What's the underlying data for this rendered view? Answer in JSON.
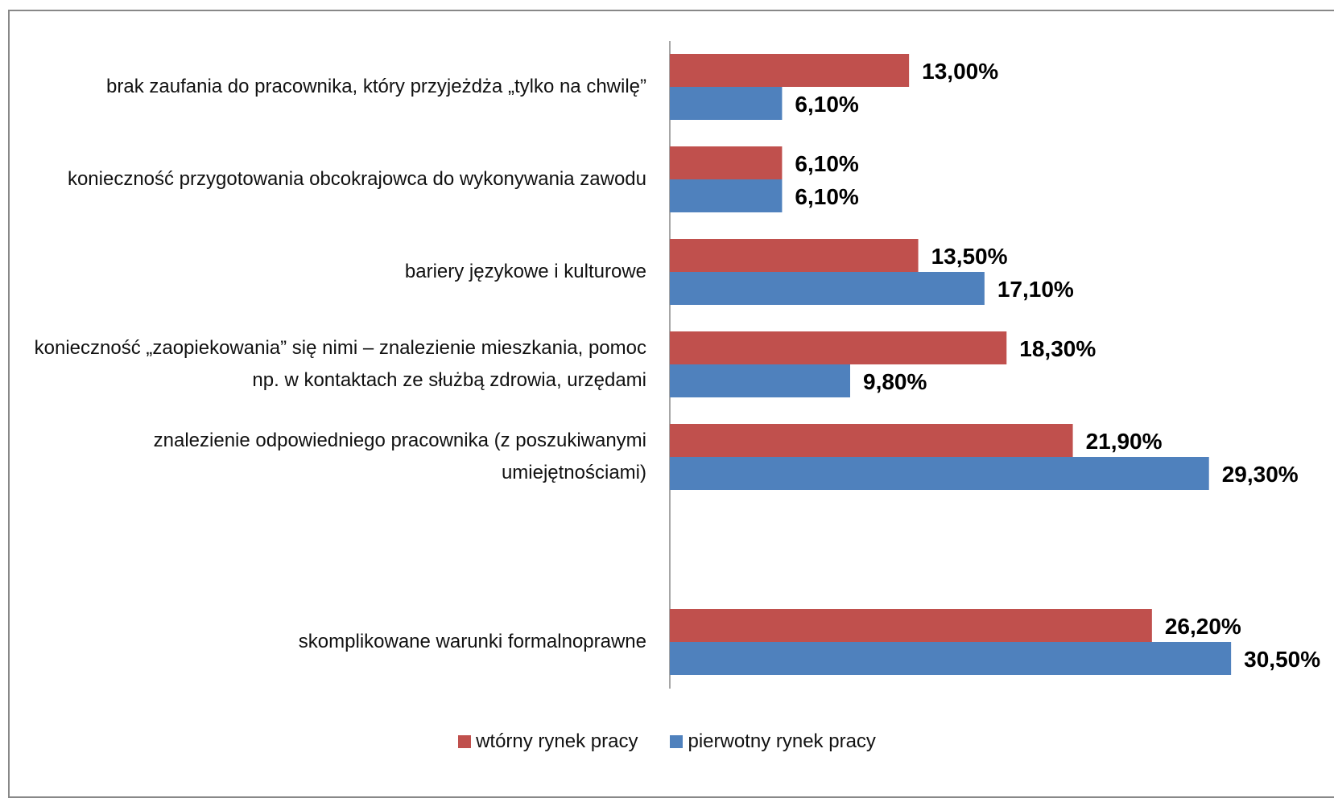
{
  "chart_data": {
    "type": "bar",
    "orientation": "horizontal",
    "categories": [
      "brak zaufania do pracownika, który przyjeżdża „tylko na chwilę”",
      "konieczność przygotowania obcokrajowca do wykonywania zawodu",
      "bariery językowe i kulturowe",
      "konieczność „zaopiekowania” się nimi – znalezienie mieszkania, pomoc np. w kontaktach ze służbą zdrowia, urzędami",
      "znalezienie odpowiedniego pracownika (z poszukiwanymi umiejętnościami)",
      null,
      "skomplikowane warunki formalnoprawne"
    ],
    "series": [
      {
        "name": "wtórny rynek pracy",
        "color": "#c0504d",
        "values": [
          13.0,
          6.1,
          13.5,
          18.3,
          21.9,
          null,
          26.2
        ],
        "value_labels": [
          "13,00%",
          "6,10%",
          "13,50%",
          "18,30%",
          "21,90%",
          null,
          "26,20%"
        ]
      },
      {
        "name": "pierwotny rynek pracy",
        "color": "#4f81bd",
        "values": [
          6.1,
          6.1,
          17.1,
          9.8,
          29.3,
          null,
          30.5
        ],
        "value_labels": [
          "6,10%",
          "6,10%",
          "17,10%",
          "9,80%",
          "29,30%",
          null,
          "30,50%"
        ]
      }
    ],
    "xlim": [
      0,
      35
    ],
    "legend": "bottom"
  }
}
